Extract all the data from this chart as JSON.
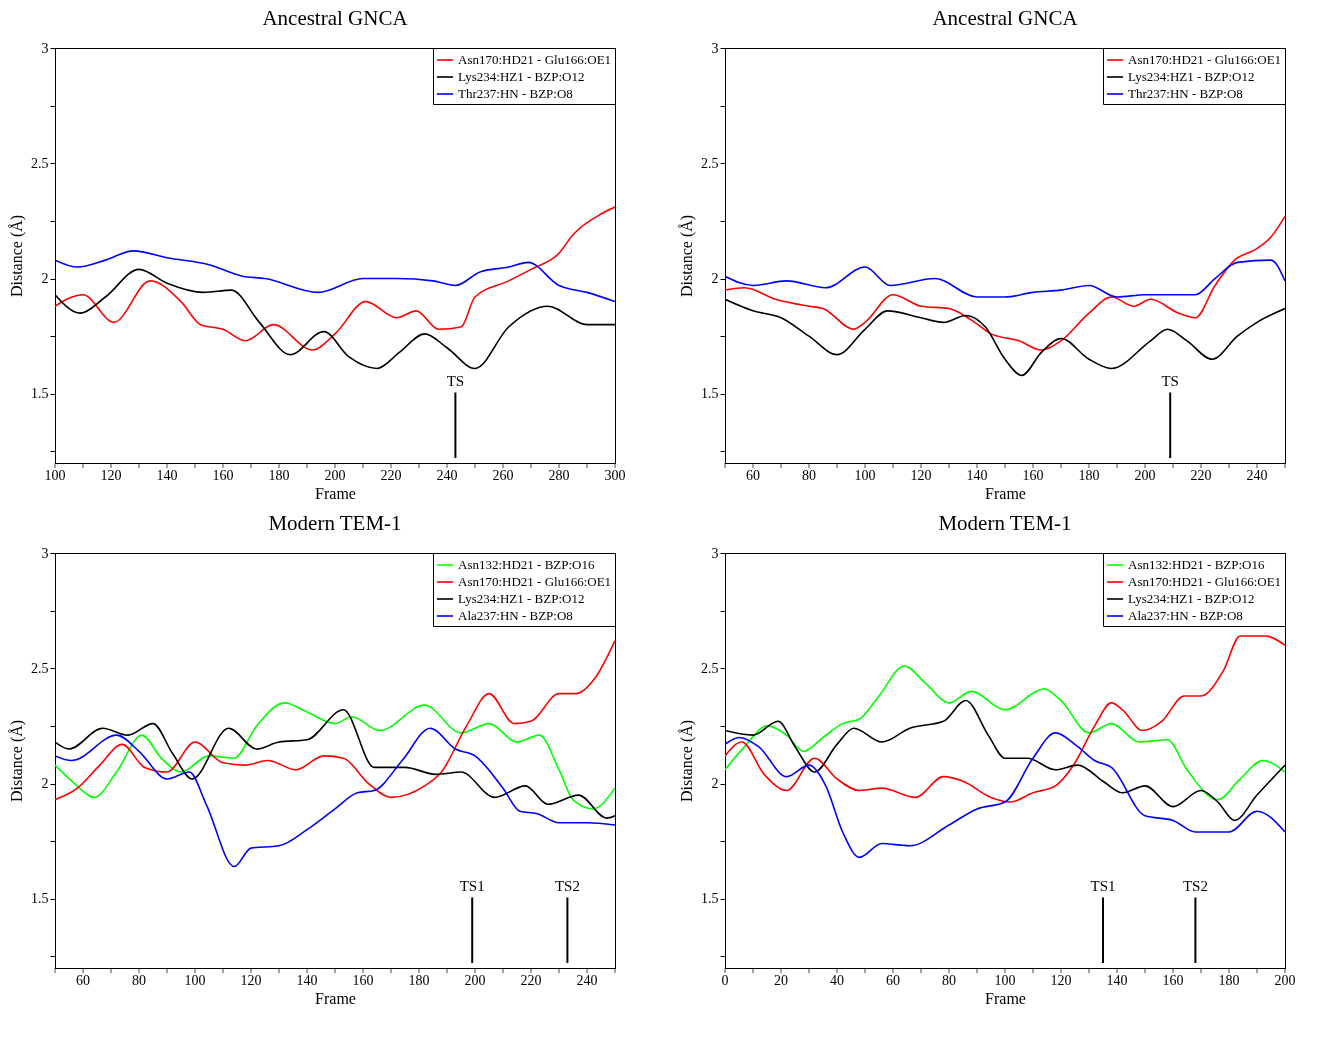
{
  "chart_data": [
    {
      "type": "line",
      "title": "Ancestral GNCA",
      "xlabel": "Frame",
      "ylabel": "Distance (Å)",
      "legend": "top right",
      "grid": false,
      "xlim": [
        100,
        300
      ],
      "xticks": [
        100,
        {
          "value": 110,
          "label": null
        },
        120,
        {
          "value": 130,
          "label": null
        },
        140,
        {
          "value": 150,
          "label": null
        },
        160,
        {
          "value": 170,
          "label": null
        },
        180,
        {
          "value": 190,
          "label": null
        },
        200,
        {
          "value": 210,
          "label": null
        },
        220,
        {
          "value": 230,
          "label": null
        },
        240,
        {
          "value": 250,
          "label": null
        },
        260,
        {
          "value": 270,
          "label": null
        },
        280,
        {
          "value": 290,
          "label": null
        },
        300
      ],
      "ylim": [
        1.2,
        3
      ],
      "yticks": [
        {
          "value": 1.25,
          "label": null
        },
        1.5,
        {
          "value": 1.75,
          "label": null
        },
        2,
        {
          "value": 2.25,
          "label": null
        },
        2.5,
        {
          "value": 2.75,
          "label": null
        },
        3
      ],
      "ref_lines": [
        {
          "axis": "x",
          "value": 243,
          "label": "TS"
        }
      ],
      "series": [
        {
          "name": "Asn170:HD21 - Glu166:OE1",
          "color": "#ff0000",
          "x": [
            100,
            110,
            121,
            134,
            145,
            152,
            160,
            168,
            178,
            192,
            200,
            211,
            222,
            229,
            237,
            245,
            250,
            262,
            270,
            280,
            285,
            295,
            300
          ],
          "values": [
            1.88,
            1.93,
            1.81,
            1.99,
            1.9,
            1.8,
            1.78,
            1.73,
            1.8,
            1.69,
            1.76,
            1.9,
            1.83,
            1.86,
            1.78,
            1.79,
            1.92,
            1.99,
            2.04,
            2.11,
            2.19,
            2.28,
            2.31
          ]
        },
        {
          "name": "Lys234:HZ1 - BZP:O12",
          "color": "#000000",
          "x": [
            100,
            109,
            118,
            130,
            140,
            153,
            163,
            173,
            184,
            196,
            205,
            215,
            223,
            232,
            240,
            250,
            262,
            276,
            290,
            300
          ],
          "values": [
            1.93,
            1.85,
            1.92,
            2.04,
            1.98,
            1.94,
            1.95,
            1.81,
            1.67,
            1.77,
            1.66,
            1.61,
            1.68,
            1.76,
            1.7,
            1.61,
            1.79,
            1.88,
            1.8,
            1.8
          ]
        },
        {
          "name": "Thr237:HN - BZP:O8",
          "color": "#0000ff",
          "x": [
            100,
            108,
            118,
            128,
            140,
            155,
            167,
            175,
            194,
            210,
            222,
            235,
            243,
            252,
            262,
            269,
            280,
            290,
            300
          ],
          "values": [
            2.08,
            2.05,
            2.08,
            2.12,
            2.09,
            2.06,
            2.01,
            2.0,
            1.94,
            2.0,
            2.0,
            1.99,
            1.97,
            2.03,
            2.05,
            2.07,
            1.97,
            1.94,
            1.9
          ]
        }
      ]
    },
    {
      "type": "line",
      "title": "Ancestral GNCA",
      "xlabel": "Frame",
      "ylabel": "Distance (Å)",
      "legend": "top right",
      "grid": false,
      "xlim": [
        50,
        250
      ],
      "xticks": [
        {
          "value": 50,
          "label": null
        },
        60,
        {
          "value": 70,
          "label": null
        },
        80,
        {
          "value": 90,
          "label": null
        },
        100,
        {
          "value": 110,
          "label": null
        },
        120,
        {
          "value": 130,
          "label": null
        },
        140,
        {
          "value": 150,
          "label": null
        },
        160,
        {
          "value": 170,
          "label": null
        },
        180,
        {
          "value": 190,
          "label": null
        },
        200,
        {
          "value": 210,
          "label": null
        },
        220,
        {
          "value": 230,
          "label": null
        },
        240,
        {
          "value": 250,
          "label": null
        }
      ],
      "ylim": [
        1.2,
        3
      ],
      "yticks": [
        {
          "value": 1.25,
          "label": null
        },
        1.5,
        {
          "value": 1.75,
          "label": null
        },
        2,
        {
          "value": 2.25,
          "label": null
        },
        2.5,
        {
          "value": 2.75,
          "label": null
        },
        3
      ],
      "ref_lines": [
        {
          "axis": "x",
          "value": 209,
          "label": "TS"
        }
      ],
      "series": [
        {
          "name": "Asn170:HD21 - Glu166:OE1",
          "color": "#ff0000",
          "x": [
            50,
            57,
            68,
            80,
            85,
            96,
            100,
            110,
            120,
            130,
            138,
            145,
            155,
            163,
            170,
            180,
            188,
            196,
            202,
            212,
            218,
            225,
            232,
            240,
            245,
            250
          ],
          "values": [
            1.95,
            1.96,
            1.91,
            1.88,
            1.87,
            1.78,
            1.81,
            1.93,
            1.88,
            1.87,
            1.82,
            1.76,
            1.73,
            1.69,
            1.73,
            1.85,
            1.92,
            1.88,
            1.91,
            1.85,
            1.83,
            1.97,
            2.08,
            2.13,
            2.18,
            2.27
          ]
        },
        {
          "name": "Lys234:HZ1 - BZP:O12",
          "color": "#000000",
          "x": [
            50,
            60,
            70,
            80,
            90,
            100,
            108,
            120,
            128,
            136,
            143,
            150,
            156,
            163,
            170,
            180,
            188,
            202,
            208,
            215,
            224,
            233,
            240,
            250
          ],
          "values": [
            1.91,
            1.86,
            1.83,
            1.75,
            1.67,
            1.78,
            1.86,
            1.83,
            1.81,
            1.84,
            1.79,
            1.65,
            1.58,
            1.68,
            1.74,
            1.65,
            1.61,
            1.73,
            1.78,
            1.73,
            1.65,
            1.75,
            1.81,
            1.87
          ]
        },
        {
          "name": "Thr237:HN - BZP:O8",
          "color": "#0000ff",
          "x": [
            50,
            60,
            72,
            86,
            100,
            109,
            125,
            140,
            150,
            160,
            170,
            180,
            190,
            200,
            218,
            225,
            233,
            245,
            250
          ],
          "values": [
            2.01,
            1.97,
            1.99,
            1.96,
            2.05,
            1.97,
            2.0,
            1.92,
            1.92,
            1.94,
            1.95,
            1.97,
            1.92,
            1.93,
            1.93,
            2.0,
            2.07,
            2.08,
            1.99
          ]
        }
      ]
    },
    {
      "type": "line",
      "title": "Modern TEM-1",
      "xlabel": "Frame",
      "ylabel": "Distance (Å)",
      "legend": "top right",
      "grid": false,
      "xlim": [
        50,
        250
      ],
      "xticks": [
        {
          "value": 50,
          "label": null
        },
        60,
        {
          "value": 70,
          "label": null
        },
        80,
        {
          "value": 90,
          "label": null
        },
        100,
        {
          "value": 110,
          "label": null
        },
        120,
        {
          "value": 130,
          "label": null
        },
        140,
        {
          "value": 150,
          "label": null
        },
        160,
        {
          "value": 170,
          "label": null
        },
        180,
        {
          "value": 190,
          "label": null
        },
        200,
        {
          "value": 210,
          "label": null
        },
        220,
        {
          "value": 230,
          "label": null
        },
        240,
        {
          "value": 250,
          "label": null
        }
      ],
      "ylim": [
        1.2,
        3
      ],
      "yticks": [
        {
          "value": 1.25,
          "label": null
        },
        1.5,
        {
          "value": 1.75,
          "label": null
        },
        2,
        {
          "value": 2.25,
          "label": null
        },
        2.5,
        {
          "value": 2.75,
          "label": null
        },
        3
      ],
      "ref_lines": [
        {
          "axis": "x",
          "value": 199,
          "label": "TS1"
        },
        {
          "axis": "x",
          "value": 233,
          "label": "TS2"
        }
      ],
      "series": [
        {
          "name": "Asn132:HD21 - BZP:O16",
          "color": "#00ff00",
          "x": [
            50,
            57,
            64,
            72,
            81,
            88,
            95,
            105,
            114,
            122,
            132,
            140,
            150,
            156,
            166,
            182,
            195,
            205,
            215,
            223,
            230,
            235,
            242,
            250
          ],
          "values": [
            2.08,
            2.0,
            1.94,
            2.05,
            2.21,
            2.11,
            2.05,
            2.12,
            2.11,
            2.25,
            2.35,
            2.31,
            2.26,
            2.29,
            2.23,
            2.34,
            2.22,
            2.26,
            2.18,
            2.21,
            2.06,
            1.93,
            1.89,
            1.98
          ]
        },
        {
          "name": "Asn170:HD21 - Glu166:OE1",
          "color": "#ff0000",
          "x": [
            50,
            58,
            66,
            74,
            82,
            90,
            100,
            110,
            118,
            126,
            136,
            146,
            153,
            162,
            170,
            182,
            188,
            197,
            205,
            214,
            220,
            230,
            236,
            243,
            250
          ],
          "values": [
            1.93,
            1.98,
            2.08,
            2.17,
            2.07,
            2.05,
            2.18,
            2.09,
            2.08,
            2.1,
            2.06,
            2.12,
            2.11,
            2.0,
            1.94,
            1.99,
            2.05,
            2.25,
            2.39,
            2.26,
            2.27,
            2.39,
            2.39,
            2.46,
            2.62
          ]
        },
        {
          "name": "Lys234:HZ1 - BZP:O12",
          "color": "#000000",
          "x": [
            50,
            55,
            67,
            76,
            85,
            92,
            99,
            112,
            122,
            130,
            140,
            153,
            164,
            175,
            186,
            195,
            207,
            218,
            226,
            237,
            247,
            250
          ],
          "values": [
            2.18,
            2.15,
            2.24,
            2.21,
            2.26,
            2.13,
            2.02,
            2.24,
            2.15,
            2.18,
            2.19,
            2.32,
            2.07,
            2.07,
            2.04,
            2.05,
            1.94,
            1.99,
            1.91,
            1.95,
            1.85,
            1.86
          ]
        },
        {
          "name": "Ala237:HN - BZP:O8",
          "color": "#0000ff",
          "x": [
            50,
            56,
            72,
            80,
            90,
            98,
            104,
            114,
            120,
            130,
            140,
            150,
            158,
            164,
            174,
            184,
            193,
            200,
            210,
            216,
            222,
            230,
            240,
            250
          ],
          "values": [
            2.12,
            2.1,
            2.21,
            2.14,
            2.02,
            2.05,
            1.91,
            1.64,
            1.72,
            1.73,
            1.8,
            1.89,
            1.96,
            1.97,
            2.1,
            2.24,
            2.15,
            2.12,
            1.98,
            1.88,
            1.87,
            1.83,
            1.83,
            1.82
          ]
        }
      ]
    },
    {
      "type": "line",
      "title": "Modern TEM-1",
      "xlabel": "Frame",
      "ylabel": "Distance (Å)",
      "legend": "top right",
      "grid": false,
      "xlim": [
        0,
        200
      ],
      "xticks": [
        0,
        {
          "value": 10,
          "label": null
        },
        20,
        {
          "value": 30,
          "label": null
        },
        40,
        {
          "value": 50,
          "label": null
        },
        60,
        {
          "value": 70,
          "label": null
        },
        80,
        {
          "value": 90,
          "label": null
        },
        100,
        {
          "value": 110,
          "label": null
        },
        120,
        {
          "value": 130,
          "label": null
        },
        140,
        {
          "value": 150,
          "label": null
        },
        160,
        {
          "value": 170,
          "label": null
        },
        180,
        {
          "value": 190,
          "label": null
        },
        200
      ],
      "ylim": [
        1.2,
        3
      ],
      "yticks": [
        {
          "value": 1.25,
          "label": null
        },
        1.5,
        {
          "value": 1.75,
          "label": null
        },
        2,
        {
          "value": 2.25,
          "label": null
        },
        2.5,
        {
          "value": 2.75,
          "label": null
        },
        3
      ],
      "ref_lines": [
        {
          "axis": "x",
          "value": 135,
          "label": "TS1"
        },
        {
          "axis": "x",
          "value": 168,
          "label": "TS2"
        }
      ],
      "series": [
        {
          "name": "Asn132:HD21 - BZP:O16",
          "color": "#00ff00",
          "x": [
            0,
            7,
            15,
            22,
            28,
            35,
            42,
            48,
            55,
            64,
            72,
            80,
            88,
            100,
            114,
            120,
            130,
            138,
            148,
            158,
            165,
            176,
            184,
            192,
            200
          ],
          "values": [
            2.06,
            2.16,
            2.25,
            2.21,
            2.14,
            2.2,
            2.26,
            2.28,
            2.38,
            2.51,
            2.43,
            2.35,
            2.4,
            2.32,
            2.41,
            2.36,
            2.22,
            2.26,
            2.18,
            2.19,
            2.06,
            1.93,
            2.02,
            2.1,
            2.05
          ]
        },
        {
          "name": "Asn170:HD21 - Glu166:OE1",
          "color": "#ff0000",
          "x": [
            0,
            6,
            14,
            22,
            32,
            40,
            48,
            56,
            68,
            78,
            85,
            95,
            102,
            110,
            118,
            125,
            132,
            138,
            142,
            149,
            156,
            164,
            170,
            178,
            184,
            193,
            200
          ],
          "values": [
            2.12,
            2.18,
            2.04,
            1.97,
            2.11,
            2.02,
            1.97,
            1.98,
            1.94,
            2.03,
            2.01,
            1.94,
            1.92,
            1.96,
            1.99,
            2.09,
            2.25,
            2.35,
            2.32,
            2.23,
            2.27,
            2.38,
            2.38,
            2.49,
            2.64,
            2.64,
            2.6
          ]
        },
        {
          "name": "Lys234:HZ1 - BZP:O12",
          "color": "#000000",
          "x": [
            0,
            10,
            19,
            25,
            32,
            40,
            46,
            56,
            66,
            78,
            86,
            94,
            100,
            108,
            118,
            126,
            135,
            142,
            150,
            160,
            170,
            176,
            182,
            190,
            200
          ],
          "values": [
            2.23,
            2.21,
            2.27,
            2.16,
            2.05,
            2.17,
            2.24,
            2.18,
            2.24,
            2.27,
            2.36,
            2.21,
            2.11,
            2.11,
            2.06,
            2.08,
            2.01,
            1.96,
            1.99,
            1.9,
            1.97,
            1.92,
            1.84,
            1.95,
            2.08
          ]
        },
        {
          "name": "Ala237:HN - BZP:O8",
          "color": "#0000ff",
          "x": [
            0,
            5,
            12,
            22,
            30,
            36,
            42,
            48,
            56,
            66,
            80,
            90,
            100,
            110,
            118,
            126,
            132,
            138,
            150,
            160,
            168,
            180,
            190,
            200
          ],
          "values": [
            2.17,
            2.2,
            2.16,
            2.03,
            2.08,
            1.99,
            1.79,
            1.68,
            1.74,
            1.73,
            1.82,
            1.89,
            1.92,
            2.11,
            2.22,
            2.16,
            2.1,
            2.07,
            1.86,
            1.84,
            1.79,
            1.79,
            1.88,
            1.79
          ]
        }
      ]
    }
  ]
}
